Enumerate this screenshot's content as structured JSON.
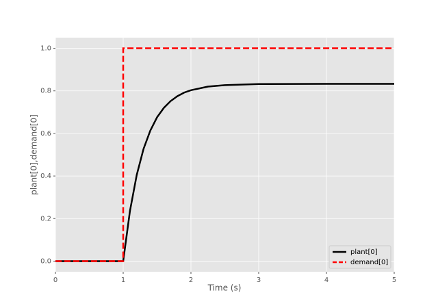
{
  "chart_data": {
    "type": "line",
    "xlabel": "Time (s)",
    "ylabel": "plant[0],demand[0]",
    "series": [
      {
        "name": "plant[0]",
        "color": "#000000",
        "dash": false,
        "x": [
          0,
          0.5,
          1,
          1.1,
          1.2,
          1.3,
          1.4,
          1.5,
          1.6,
          1.7,
          1.8,
          1.9,
          2.0,
          2.25,
          2.5,
          3,
          4,
          5
        ],
        "values": [
          0,
          0,
          0,
          0.236,
          0.405,
          0.527,
          0.613,
          0.676,
          0.72,
          0.752,
          0.775,
          0.792,
          0.803,
          0.82,
          0.827,
          0.832,
          0.833,
          0.833
        ]
      },
      {
        "name": "demand[0]",
        "color": "#ff0000",
        "dash": true,
        "x": [
          0,
          1,
          1,
          5
        ],
        "values": [
          0,
          0,
          1,
          1
        ]
      }
    ],
    "xlim": [
      0,
      5
    ],
    "xticks": [
      0,
      1,
      2,
      3,
      4,
      5
    ],
    "ylim": [
      -0.05,
      1.05
    ],
    "yticks": [
      {
        "value": 0,
        "label": "0.0"
      },
      {
        "value": 0.2,
        "label": "0.2"
      },
      {
        "value": 0.4,
        "label": "0.4"
      },
      {
        "value": 0.6,
        "label": "0.6"
      },
      {
        "value": 0.8,
        "label": "0.8"
      },
      {
        "value": 1,
        "label": "1.0"
      }
    ],
    "grid": true,
    "legend": "lower right"
  }
}
